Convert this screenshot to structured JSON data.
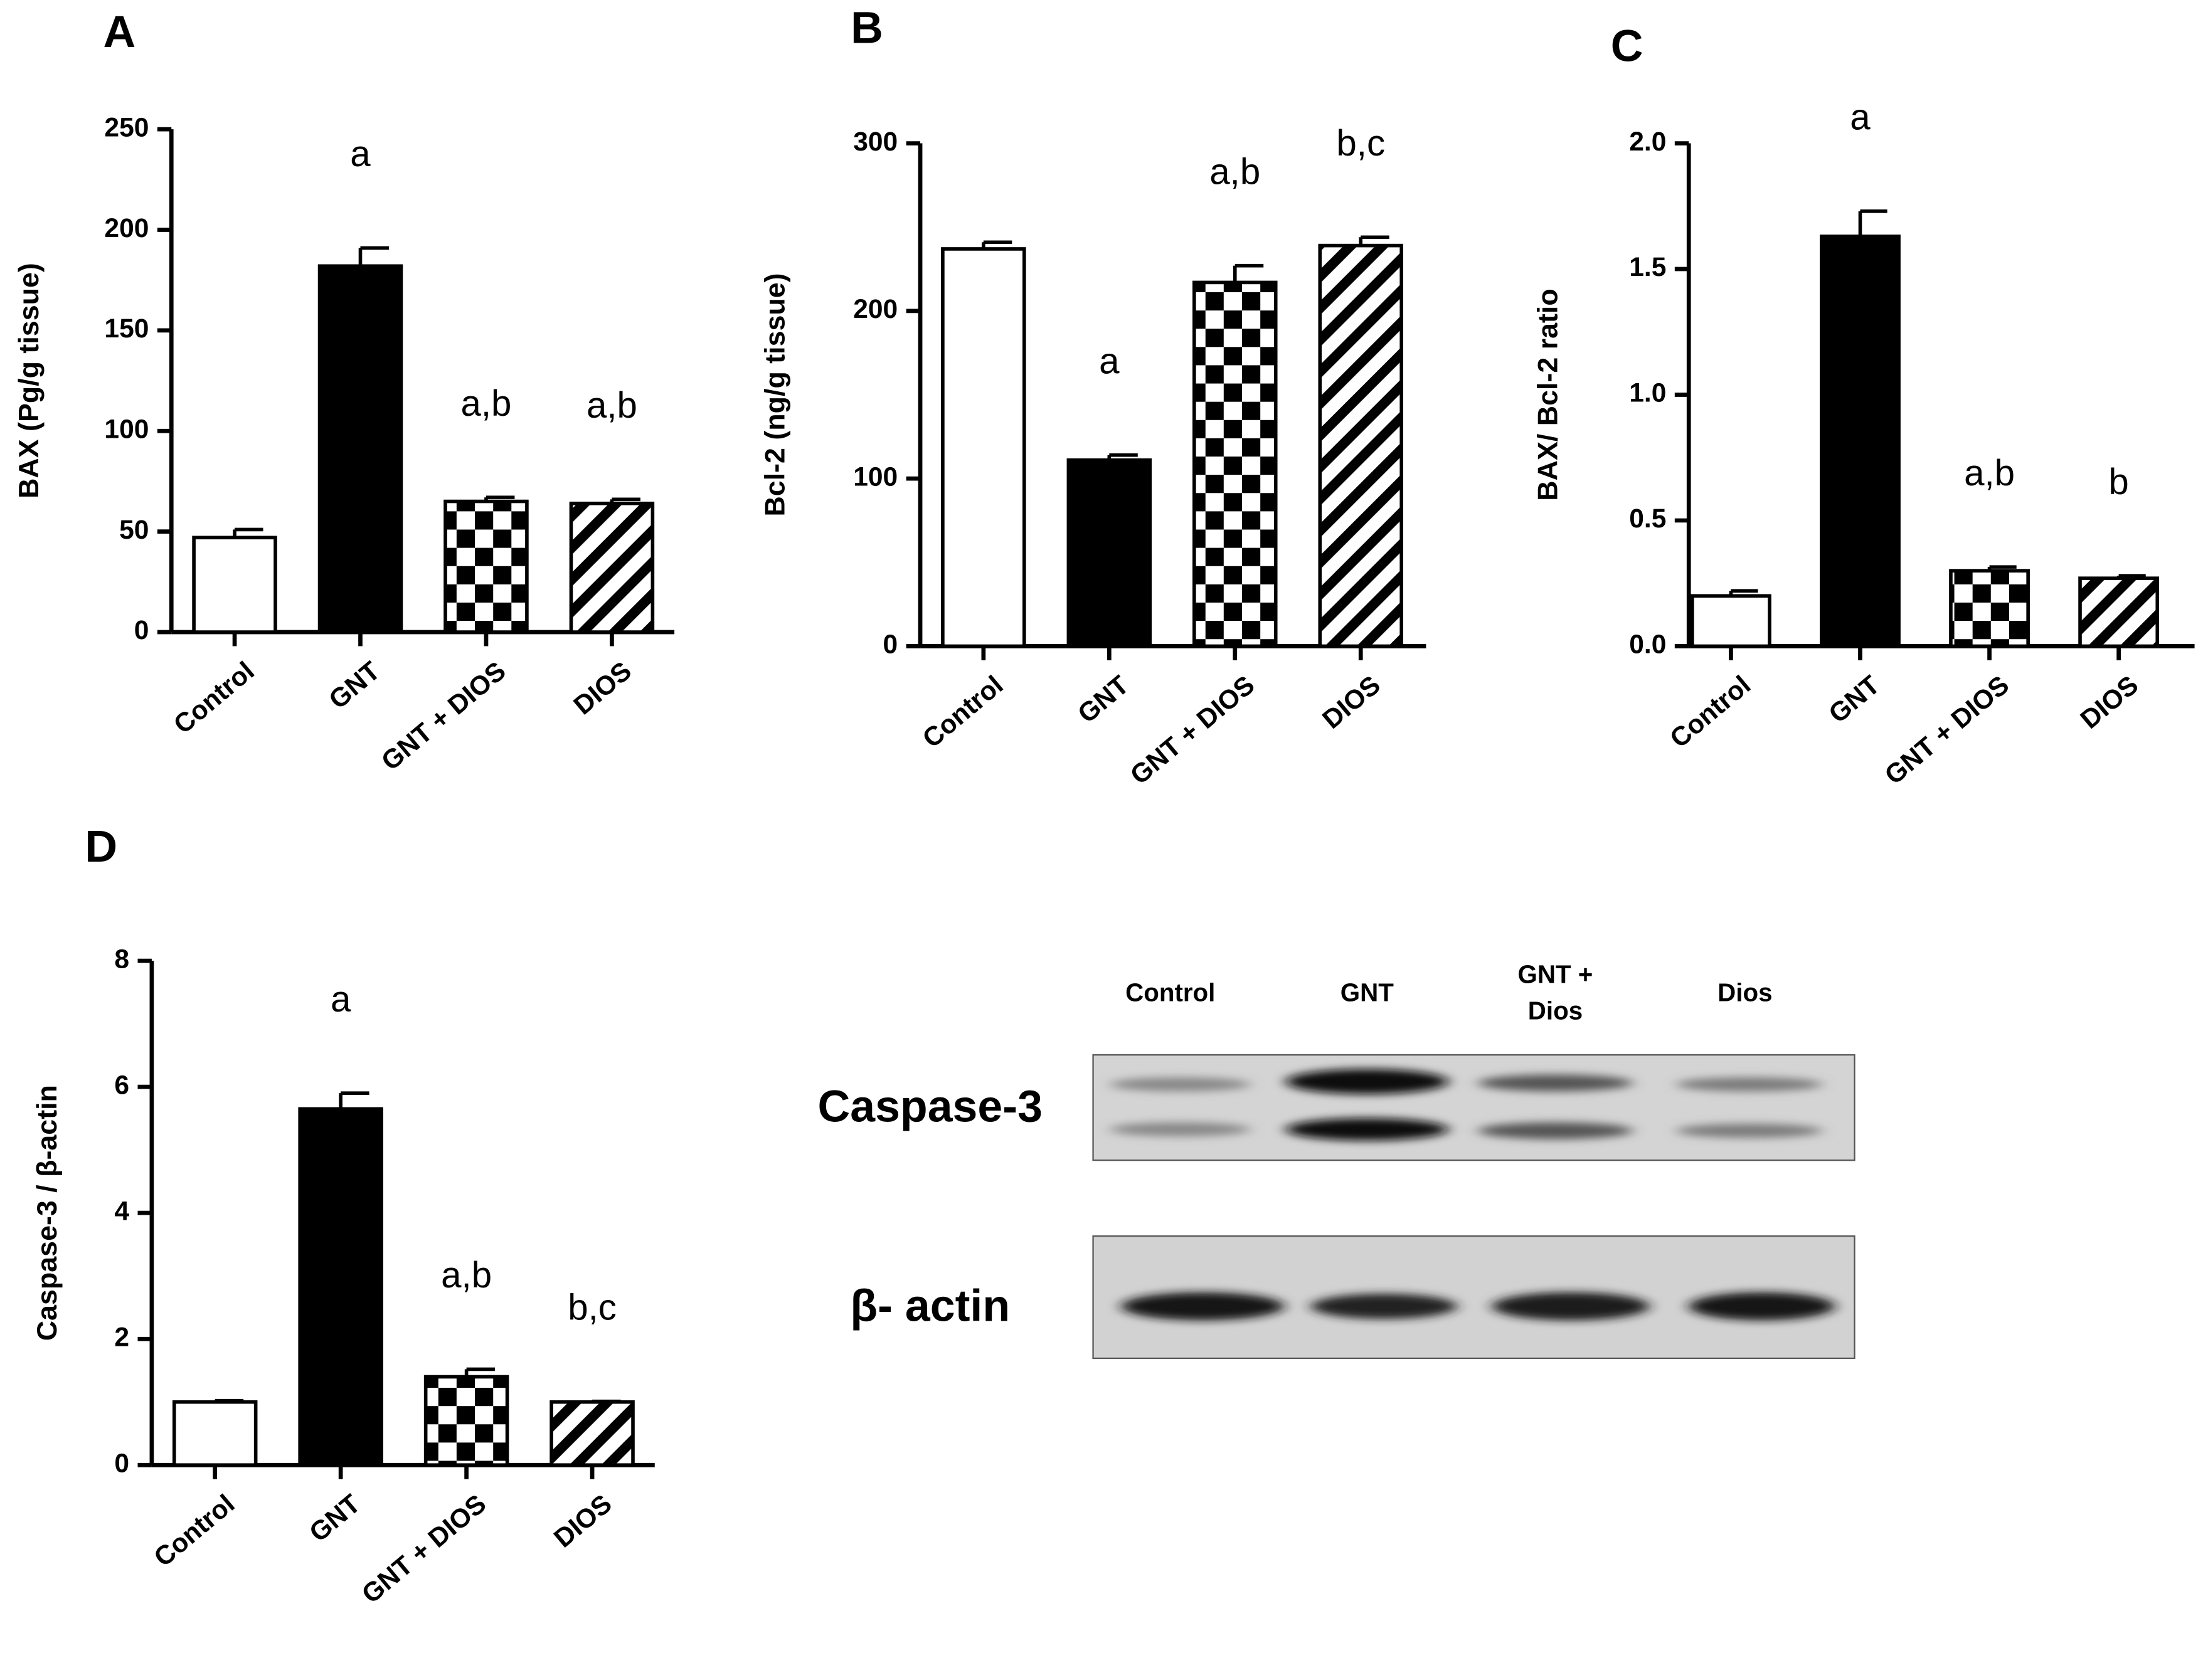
{
  "chart_data": [
    {
      "type": "bar",
      "panel": "A",
      "ylabel": "BAX (Pg/g tissue)",
      "categories": [
        "Control",
        "GNT",
        "GNT + DIOS",
        "DIOS"
      ],
      "values": [
        47,
        182,
        65,
        64
      ],
      "errors": [
        4,
        9,
        2,
        2
      ],
      "annotations": [
        null,
        "a",
        "a,b",
        "a,b"
      ],
      "fills": [
        "white",
        "black",
        "checker",
        "hatch"
      ],
      "ylim": [
        0,
        250
      ],
      "yticks": [
        0,
        50,
        100,
        150,
        200,
        250
      ]
    },
    {
      "type": "bar",
      "panel": "B",
      "ylabel": "Bcl-2 (ng/g tissue)",
      "categories": [
        "Control",
        "GNT",
        "GNT + DIOS",
        "DIOS"
      ],
      "values": [
        237,
        111,
        217,
        239
      ],
      "errors": [
        4,
        3,
        10,
        5
      ],
      "annotations": [
        null,
        "a",
        "a,b",
        "b,c"
      ],
      "fills": [
        "white",
        "black",
        "checker",
        "hatch"
      ],
      "ylim": [
        0,
        300
      ],
      "yticks": [
        0,
        100,
        200,
        300
      ]
    },
    {
      "type": "bar",
      "panel": "C",
      "ylabel": "BAX/ Bcl-2  ratio",
      "categories": [
        "Control",
        "GNT",
        "GNT + DIOS",
        "DIOS"
      ],
      "values": [
        0.2,
        1.63,
        0.3,
        0.27
      ],
      "errors": [
        0.02,
        0.1,
        0.015,
        0.01
      ],
      "annotations": [
        null,
        "a",
        "a,b",
        "b"
      ],
      "fills": [
        "white",
        "black",
        "checker",
        "hatch"
      ],
      "ylim": [
        0,
        2.0
      ],
      "yticks": [
        {
          "value": 0,
          "label": "0.0"
        },
        {
          "value": 0.5,
          "label": "0.5"
        },
        {
          "value": 1,
          "label": "1.0"
        },
        {
          "value": 1.5,
          "label": "1.5"
        },
        {
          "value": 2,
          "label": "2.0"
        }
      ]
    },
    {
      "type": "bar",
      "panel": "D",
      "ylabel": "Caspase-3 / β-actin",
      "categories": [
        "Control",
        "GNT",
        "GNT + DIOS",
        "DIOS"
      ],
      "values": [
        1.0,
        5.65,
        1.4,
        1.0
      ],
      "errors": [
        0.02,
        0.25,
        0.12,
        0.01
      ],
      "annotations": [
        null,
        "a",
        "a,b",
        "b,c"
      ],
      "fills": [
        "white",
        "black",
        "checker",
        "hatch"
      ],
      "ylim": [
        0,
        8
      ],
      "yticks": [
        0,
        2,
        4,
        6,
        8
      ]
    }
  ],
  "blot": {
    "lanes": [
      [
        "Control"
      ],
      [
        "GNT"
      ],
      [
        "GNT +",
        "Dios"
      ],
      [
        "Dios"
      ]
    ],
    "rows": [
      "Caspase-3",
      "β- actin"
    ]
  }
}
